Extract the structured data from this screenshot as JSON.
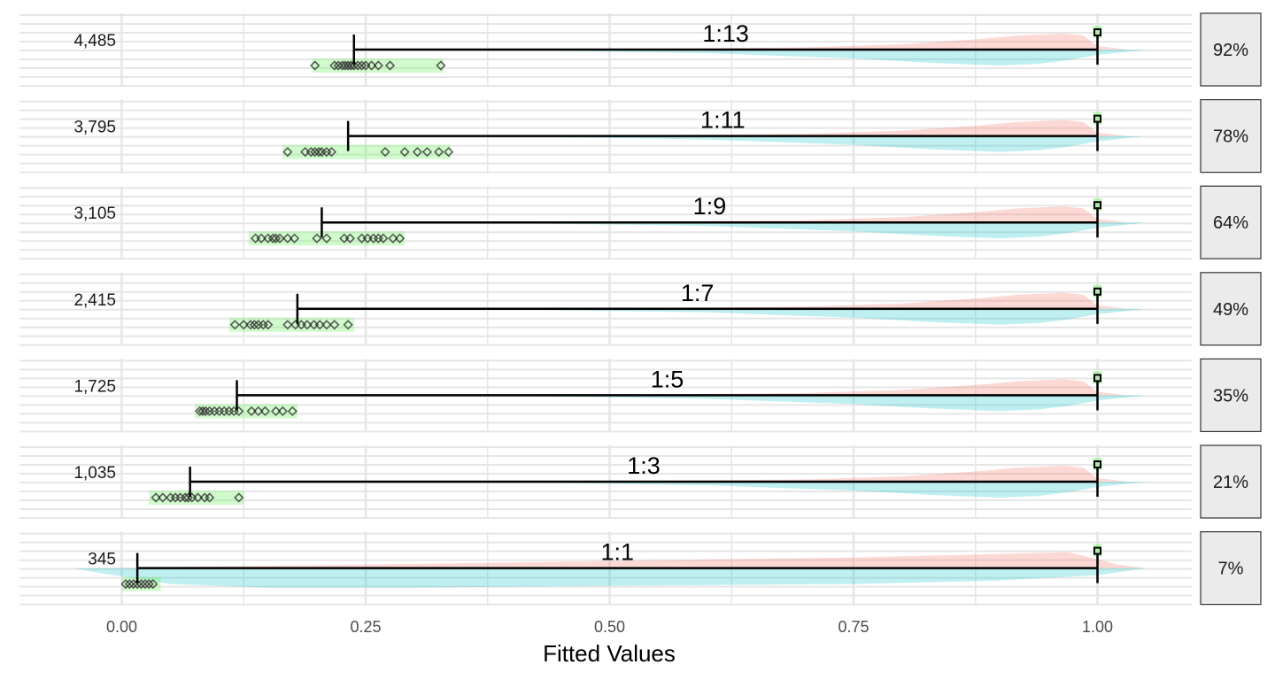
{
  "chart_data": {
    "type": "faceted-distribution",
    "xlabel": "Fitted Values",
    "xlim": [
      -0.1,
      1.1
    ],
    "xticks": [
      0.0,
      0.25,
      0.5,
      0.75,
      1.0
    ],
    "xtick_labels": [
      "0.00",
      "0.25",
      "0.50",
      "0.75",
      "1.00"
    ],
    "colors": {
      "pink": "#f8766d",
      "teal": "#00bfc4",
      "green": "#7cf06f",
      "black": "#000000",
      "grid": "#e6e6e6",
      "strip_fill": "#ebebeb"
    },
    "panels": [
      {
        "count": "4,485",
        "ratio": "1:13",
        "strip": "92%",
        "mean": 0.238,
        "upper": 1.0,
        "green_range": [
          0.195,
          0.33
        ],
        "points": [
          0.198,
          0.218,
          0.222,
          0.226,
          0.229,
          0.232,
          0.235,
          0.238,
          0.242,
          0.246,
          0.25,
          0.256,
          0.263,
          0.275,
          0.327
        ]
      },
      {
        "count": "3,795",
        "ratio": "1:11",
        "strip": "78%",
        "mean": 0.232,
        "upper": 1.0,
        "green_range": [
          0.165,
          0.337
        ],
        "points": [
          0.17,
          0.188,
          0.194,
          0.198,
          0.202,
          0.205,
          0.21,
          0.215,
          0.27,
          0.29,
          0.303,
          0.313,
          0.325,
          0.335
        ]
      },
      {
        "count": "3,105",
        "ratio": "1:9",
        "strip": "64%",
        "mean": 0.205,
        "upper": 1.0,
        "green_range": [
          0.13,
          0.29
        ],
        "points": [
          0.137,
          0.143,
          0.15,
          0.155,
          0.158,
          0.162,
          0.17,
          0.177,
          0.2,
          0.21,
          0.228,
          0.234,
          0.246,
          0.252,
          0.258,
          0.263,
          0.268,
          0.278,
          0.285
        ]
      },
      {
        "count": "2,415",
        "ratio": "1:7",
        "strip": "49%",
        "mean": 0.18,
        "upper": 1.0,
        "green_range": [
          0.11,
          0.238
        ],
        "points": [
          0.116,
          0.125,
          0.132,
          0.136,
          0.14,
          0.145,
          0.15,
          0.17,
          0.178,
          0.184,
          0.19,
          0.197,
          0.203,
          0.21,
          0.218,
          0.232
        ]
      },
      {
        "count": "1,725",
        "ratio": "1:5",
        "strip": "35%",
        "mean": 0.118,
        "upper": 1.0,
        "green_range": [
          0.075,
          0.18
        ],
        "points": [
          0.08,
          0.083,
          0.086,
          0.09,
          0.095,
          0.1,
          0.105,
          0.11,
          0.115,
          0.12,
          0.133,
          0.14,
          0.147,
          0.158,
          0.165,
          0.175
        ]
      },
      {
        "count": "1,035",
        "ratio": "1:3",
        "strip": "21%",
        "mean": 0.07,
        "upper": 1.0,
        "green_range": [
          0.028,
          0.125
        ],
        "points": [
          0.035,
          0.042,
          0.05,
          0.055,
          0.06,
          0.065,
          0.068,
          0.072,
          0.078,
          0.085,
          0.09,
          0.12
        ]
      },
      {
        "count": "345",
        "ratio": "1:1",
        "strip": "7%",
        "mean": 0.016,
        "upper": 1.0,
        "green_range": [
          0.0,
          0.04
        ],
        "points": [
          0.004,
          0.008,
          0.012,
          0.016,
          0.02,
          0.024,
          0.028,
          0.032
        ]
      }
    ]
  }
}
